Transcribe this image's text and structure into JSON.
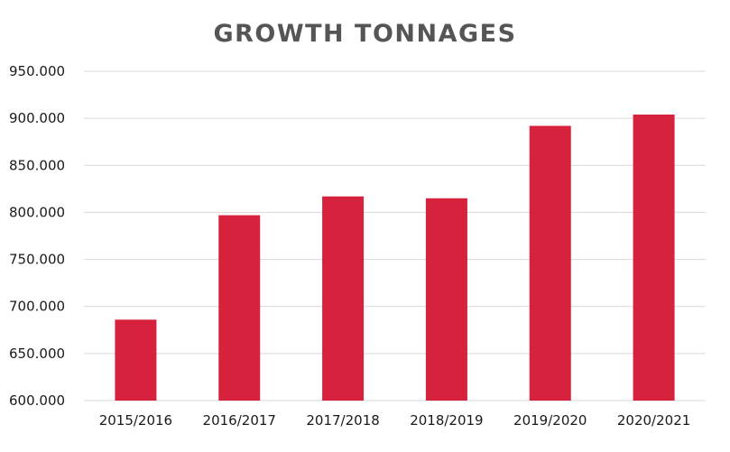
{
  "colors": {
    "bar": "#d6223c",
    "title": "#555555",
    "grid": "#d9d9d9",
    "text": "#1a1a1a"
  },
  "chart_data": {
    "type": "bar",
    "title": "GROWTH TONNAGES",
    "xlabel": "",
    "ylabel": "",
    "categories": [
      "2015/2016",
      "2016/2017",
      "2017/2018",
      "2018/2019",
      "2019/2020",
      "2020/2021"
    ],
    "values": [
      686000,
      797000,
      817000,
      815000,
      892000,
      904000
    ],
    "ylim": [
      600000,
      950000
    ],
    "yticks": [
      600000,
      650000,
      700000,
      750000,
      800000,
      850000,
      900000,
      950000
    ],
    "ytick_labels": [
      "600.000",
      "650.000",
      "700.000",
      "750.000",
      "800.000",
      "850.000",
      "900.000",
      "950.000"
    ],
    "grid": true,
    "legend": "none"
  }
}
